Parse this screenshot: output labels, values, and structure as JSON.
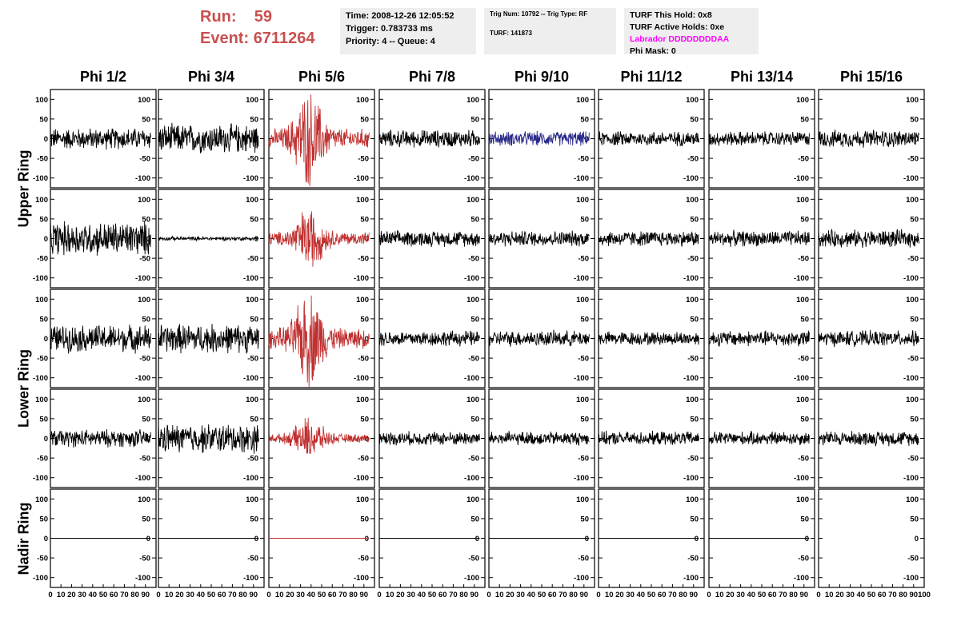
{
  "header": {
    "run_label": "Run:",
    "run_value": "59",
    "event_label": "Event:",
    "event_value": "6711264"
  },
  "info_time": {
    "time": "Time: 2008-12-26 12:05:52",
    "trigger": "Trigger: 0.783733 ms",
    "priority": "Priority: 4 -- Queue: 4"
  },
  "info_trig": {
    "trig": "Trig Num: 10792 -- Trig Type: RF",
    "turf": "TURF: 141873"
  },
  "info_turf": {
    "this_hold": "TURF This Hold: 0x8",
    "active_holds": "TURF Active Holds: 0xe",
    "labrador": "Labrador DDDDDDDDAA",
    "phi_mask": "Phi Mask: 0"
  },
  "colors": {
    "trace_default": "#000000",
    "trace_triggered": "#c03030",
    "trace_masked": "#2a2a8a",
    "run_text": "#c8504f",
    "labrador_text": "#ff00ff",
    "info_bg": "#eeeeee"
  },
  "chart_data": {
    "type": "line",
    "columns": [
      "Phi 1/2",
      "Phi 3/4",
      "Phi 5/6",
      "Phi 7/8",
      "Phi 9/10",
      "Phi 11/12",
      "Phi 13/14",
      "Phi 15/16"
    ],
    "rows": [
      "Upper Ring",
      "Lower Ring",
      "Nadir Ring"
    ],
    "subrows": 5,
    "xlim": [
      0,
      100
    ],
    "ylim": [
      -125,
      125
    ],
    "x_ticks": [
      0,
      10,
      20,
      30,
      40,
      50,
      60,
      70,
      80,
      90,
      100
    ],
    "x_tick_labels": [
      "0",
      "10",
      "20",
      "30",
      "40",
      "50",
      "60",
      "70",
      "80",
      "90",
      "100"
    ],
    "y_ticks": [
      -100,
      -50,
      0,
      50,
      100
    ],
    "y_tick_labels": [
      "-100",
      "-50",
      "0",
      "50",
      "100"
    ],
    "trace_x_range": [
      0,
      95
    ],
    "trace_amplitudes": [
      [
        22,
        30,
        45,
        18,
        15,
        15,
        15,
        18
      ],
      [
        35,
        4,
        30,
        16,
        16,
        16,
        16,
        18
      ],
      [
        28,
        30,
        45,
        16,
        16,
        14,
        16,
        16
      ],
      [
        18,
        30,
        20,
        14,
        14,
        14,
        14,
        15
      ],
      [
        0,
        0,
        0,
        0,
        0,
        0,
        0,
        0
      ]
    ],
    "trace_colors": [
      [
        "default",
        "default",
        "triggered",
        "default",
        "masked",
        "default",
        "default",
        "default"
      ],
      [
        "default",
        "default",
        "triggered",
        "default",
        "default",
        "default",
        "default",
        "default"
      ],
      [
        "default",
        "default",
        "triggered",
        "default",
        "default",
        "default",
        "default",
        "default"
      ],
      [
        "default",
        "default",
        "triggered",
        "default",
        "default",
        "default",
        "default",
        "default"
      ],
      [
        "default",
        "default",
        "triggered",
        "default",
        "default",
        "default",
        "default",
        "none"
      ]
    ]
  }
}
